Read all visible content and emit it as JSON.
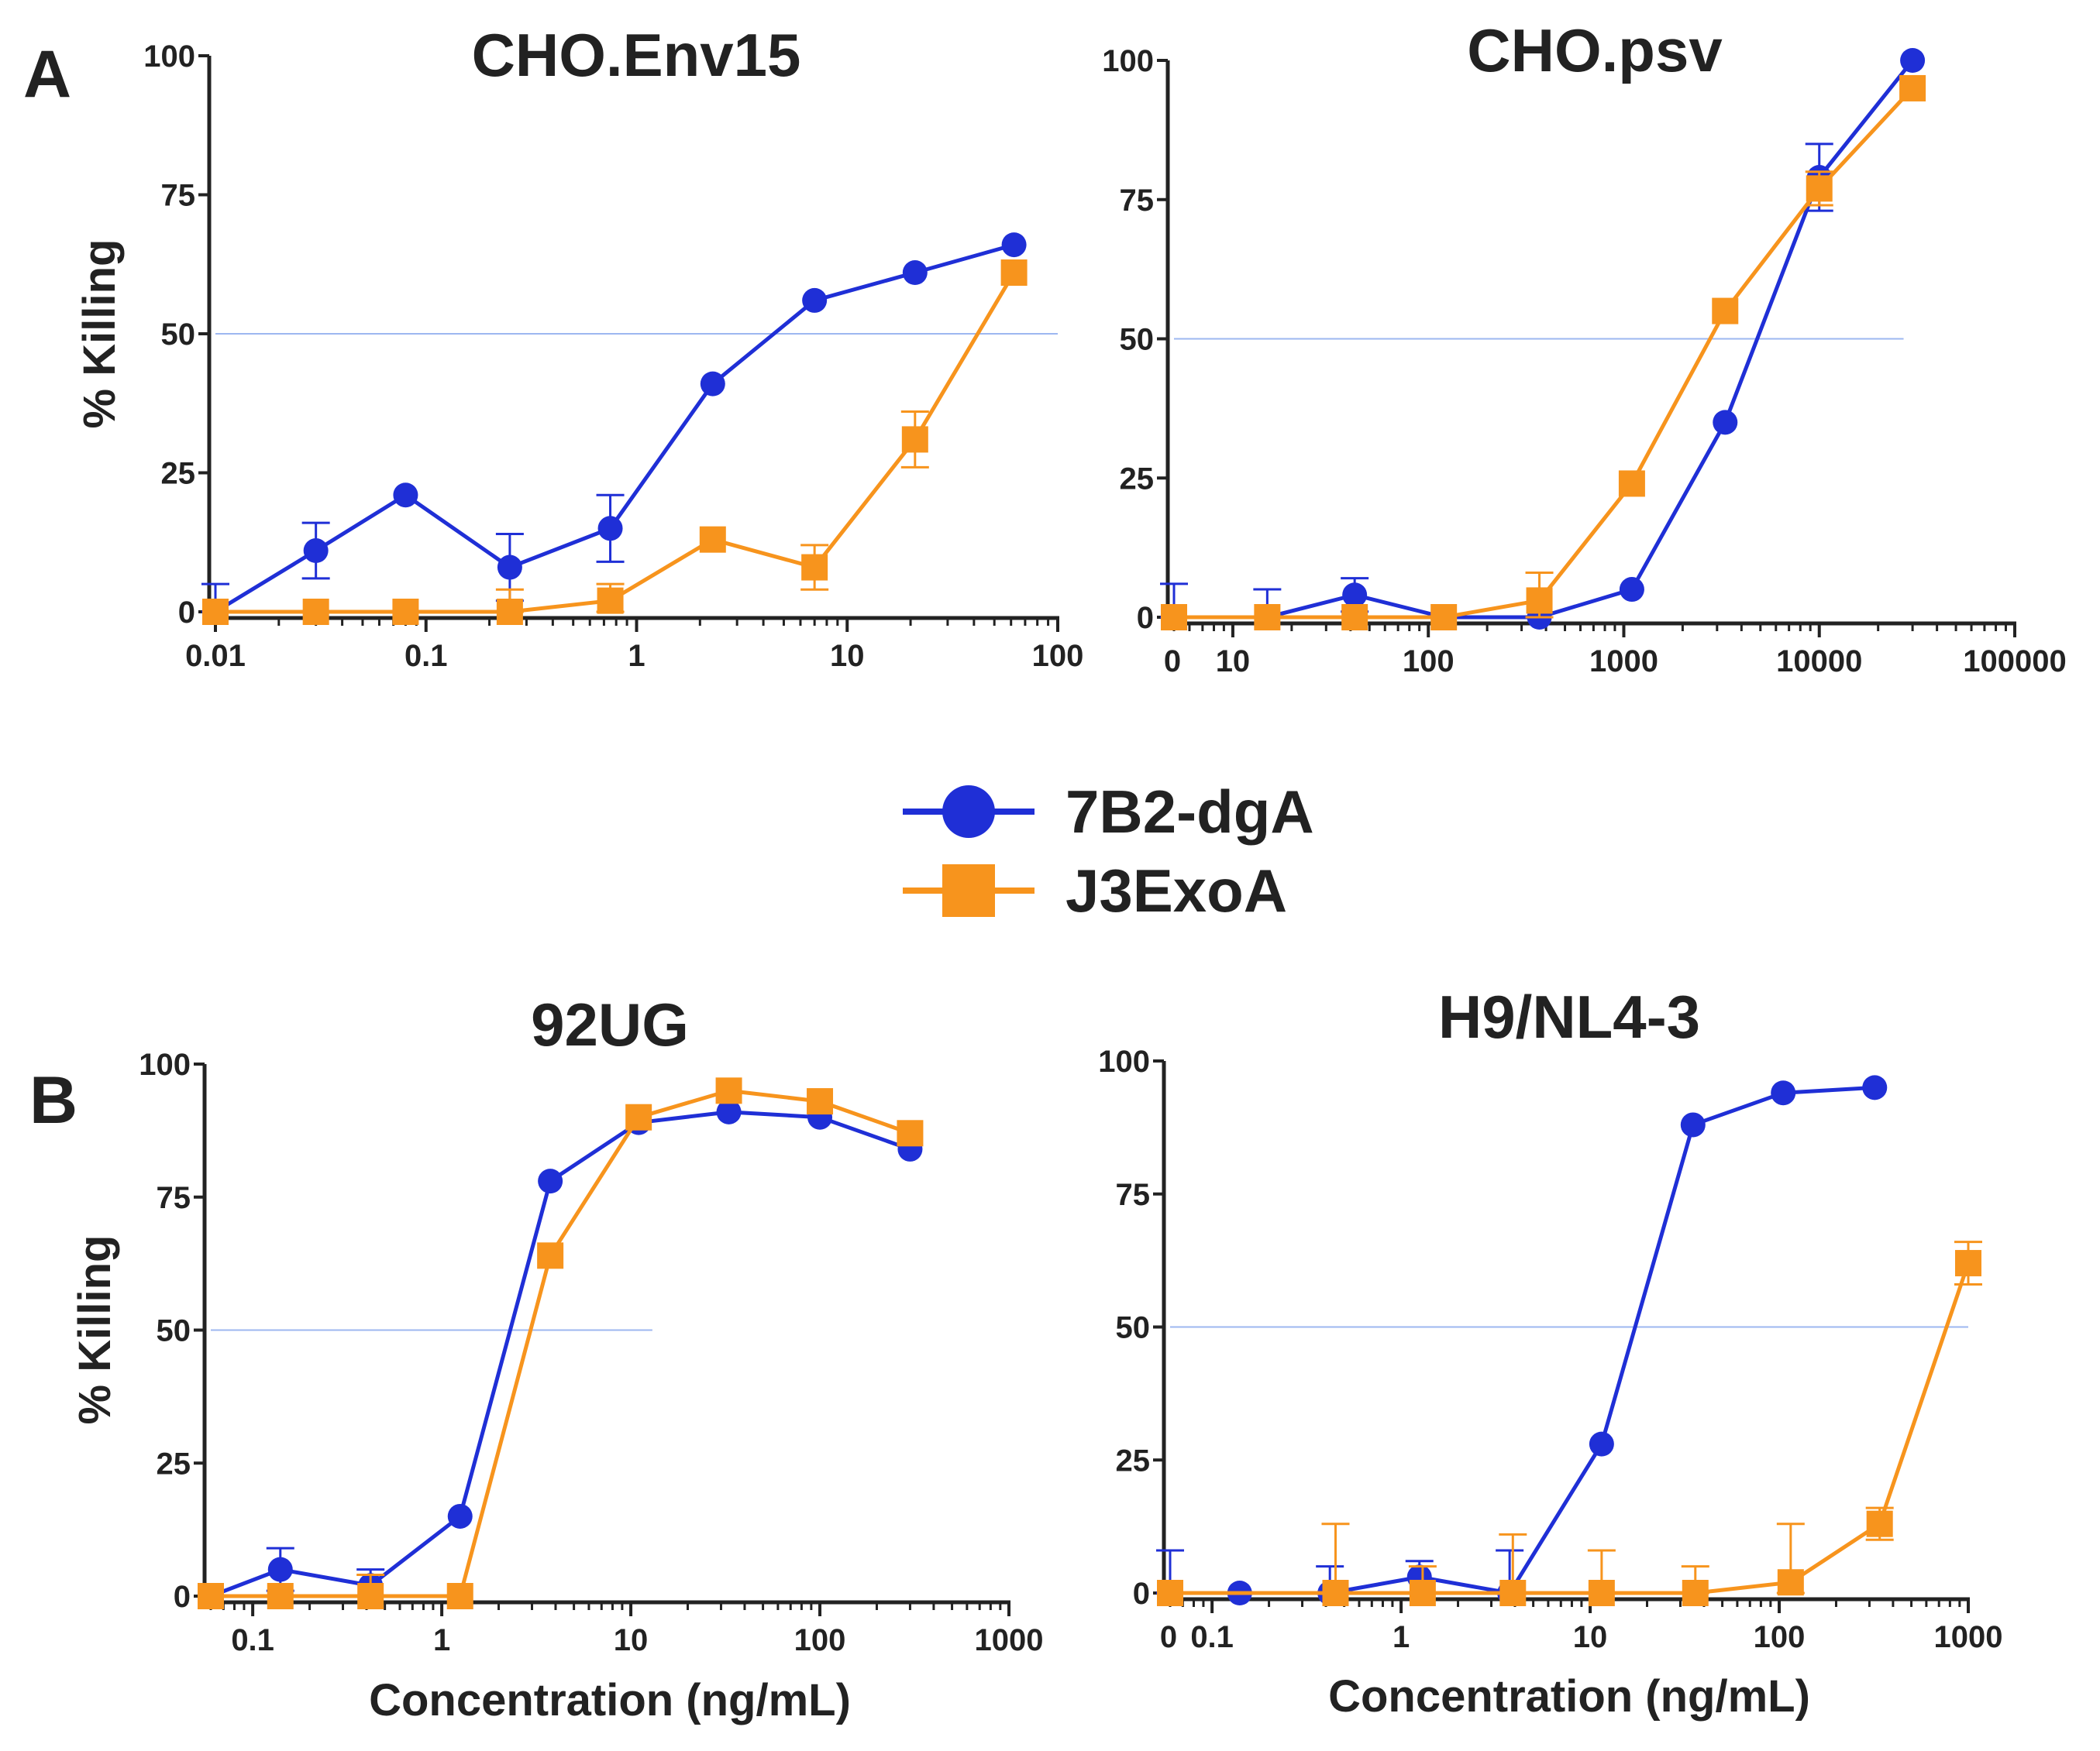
{
  "figure": {
    "panel_letters": [
      "A",
      "B"
    ],
    "legend": [
      {
        "name": "7B2-dgA",
        "color": "#1f2fd6",
        "marker": "circle"
      },
      {
        "name": "J3ExoA",
        "color": "#f7941d",
        "marker": "square"
      }
    ],
    "reference_line_color": "#9db7f0"
  },
  "chart_data": [
    {
      "type": "line",
      "panel": "A",
      "title": "CHO.Env15",
      "xlabel": "",
      "ylabel": "% Killing",
      "xscale": "log",
      "xlim": [
        0.01,
        100
      ],
      "ylim": [
        0,
        100
      ],
      "xticks": [
        "0.01",
        "0.1",
        "1",
        "10",
        "100"
      ],
      "yticks": [
        "0",
        "25",
        "50",
        "75",
        "100"
      ],
      "reference_line": {
        "y": 50,
        "x_start": 0.01,
        "x_end": 100
      },
      "series": [
        {
          "name": "7B2-dgA",
          "x": [
            0.01,
            0.03,
            0.08,
            0.25,
            0.75,
            2.3,
            7,
            21,
            62
          ],
          "y": [
            0,
            11,
            21,
            8,
            15,
            41,
            56,
            61,
            66
          ],
          "err": [
            5,
            5,
            0,
            6,
            6,
            0,
            0,
            0,
            0
          ]
        },
        {
          "name": "J3ExoA",
          "x": [
            0.01,
            0.03,
            0.08,
            0.25,
            0.75,
            2.3,
            7,
            21,
            62
          ],
          "y": [
            0,
            0,
            0,
            0,
            2,
            13,
            8,
            31,
            61
          ],
          "err": [
            0,
            0,
            0,
            4,
            3,
            0,
            4,
            5,
            0
          ]
        }
      ]
    },
    {
      "type": "line",
      "panel": "A",
      "title": "CHO.psv",
      "xlabel": "",
      "ylabel": "",
      "xscale": "log",
      "xlim": [
        5,
        100000
      ],
      "ylim": [
        0,
        100
      ],
      "xticks": [
        "0",
        "10",
        "100",
        "1000",
        "10000",
        "100000"
      ],
      "yticks": [
        "0",
        "25",
        "50",
        "75",
        "100"
      ],
      "reference_line": {
        "y": 50,
        "x_start": 5,
        "x_end": 27000
      },
      "series": [
        {
          "name": "7B2-dgA",
          "x": [
            5,
            15,
            42,
            120,
            370,
            1100,
            3300,
            10000,
            30000
          ],
          "y": [
            0,
            0,
            4,
            0,
            0,
            5,
            35,
            79,
            100
          ],
          "err": [
            6,
            5,
            3,
            0,
            0,
            0,
            0,
            6,
            0
          ]
        },
        {
          "name": "J3ExoA",
          "x": [
            5,
            15,
            42,
            120,
            370,
            1100,
            3300,
            10000,
            30000
          ],
          "y": [
            0,
            0,
            0,
            0,
            3,
            24,
            55,
            77,
            95
          ],
          "err": [
            0,
            0,
            0,
            0,
            5,
            0,
            0,
            3,
            0
          ]
        }
      ]
    },
    {
      "type": "line",
      "panel": "B",
      "title": "92UG",
      "xlabel": "Concentration (ng/mL)",
      "ylabel": "% Killing",
      "xscale": "log",
      "xlim": [
        0.06,
        1000
      ],
      "ylim": [
        0,
        100
      ],
      "xticks": [
        "0.1",
        "1",
        "10",
        "100",
        "1000"
      ],
      "yticks": [
        "0",
        "25",
        "50",
        "75",
        "100"
      ],
      "reference_line": {
        "y": 50,
        "x_start": 0.06,
        "x_end": 13
      },
      "series": [
        {
          "name": "7B2-dgA",
          "x": [
            0.06,
            0.14,
            0.42,
            1.25,
            3.75,
            11,
            33,
            100,
            300
          ],
          "y": [
            0,
            5,
            2,
            15,
            78,
            89,
            91,
            90,
            84
          ],
          "err": [
            0,
            4,
            3,
            0,
            0,
            0,
            0,
            0,
            0
          ]
        },
        {
          "name": "J3ExoA",
          "x": [
            0.06,
            0.14,
            0.42,
            1.25,
            3.75,
            11,
            33,
            100,
            300
          ],
          "y": [
            0,
            0,
            0,
            0,
            64,
            90,
            95,
            93,
            87
          ],
          "err": [
            0,
            0,
            4,
            0,
            0,
            0,
            0,
            0,
            0
          ]
        }
      ]
    },
    {
      "type": "line",
      "panel": "B",
      "title": "H9/NL4-3",
      "xlabel": "Concentration (ng/mL)",
      "ylabel": "",
      "xscale": "log",
      "xlim": [
        0.06,
        1000
      ],
      "ylim": [
        0,
        100
      ],
      "xticks": [
        "0",
        "0.1",
        "1",
        "10",
        "100",
        "1000"
      ],
      "yticks": [
        "0",
        "25",
        "50",
        "75",
        "100"
      ],
      "reference_line": {
        "y": 50,
        "x_start": 0.06,
        "x_end": 1000
      },
      "series": [
        {
          "name": "7B2-dgA",
          "x": [
            0.06,
            0.14,
            0.42,
            1.25,
            3.75,
            11.5,
            35,
            105,
            320
          ],
          "y": [
            0,
            0,
            0,
            3,
            0,
            28,
            88,
            94,
            95
          ],
          "err": [
            8,
            0,
            5,
            3,
            8,
            0,
            0,
            0,
            0
          ]
        },
        {
          "name": "J3ExoA",
          "x": [
            0.06,
            0.45,
            1.3,
            3.9,
            11.5,
            36,
            115,
            340,
            1000
          ],
          "y": [
            0,
            0,
            0,
            0,
            0,
            0,
            2,
            13,
            62
          ],
          "err": [
            0,
            13,
            5,
            11,
            8,
            5,
            11,
            3,
            4
          ]
        }
      ]
    }
  ]
}
